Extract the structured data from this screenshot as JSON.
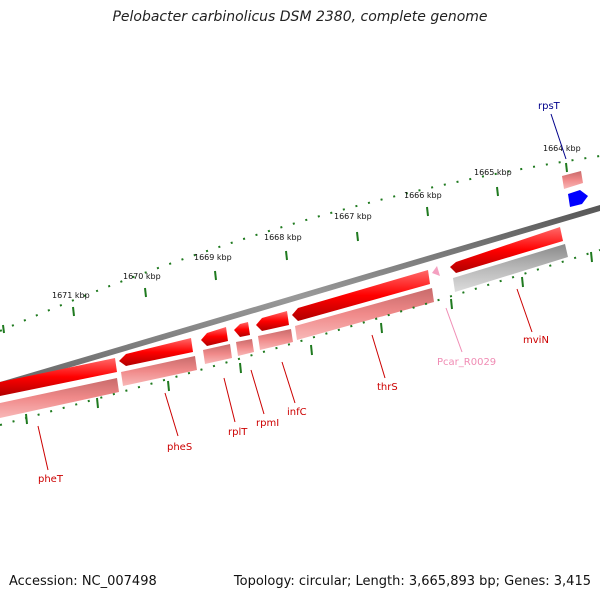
{
  "title": "Pelobacter carbinolicus DSM 2380, complete genome",
  "footer": {
    "accession": "Accession: NC_007498",
    "summary": "Topology: circular; Length: 3,665,893 bp; Genes: 3,415"
  },
  "colors": {
    "gene_forward": "#ff0000",
    "gene_reverse_pink": "#f08080",
    "gene_gray": "#b0b0b0",
    "gene_blue": "#0000ff",
    "rna": "#f4a0c0",
    "backbone": "#7a7a7a",
    "tick": "#1f7a1f",
    "label_red": "#cc0000",
    "label_blue": "#00008b",
    "label_pink": "#f08cb4"
  },
  "scale_labels": [
    "1671 kbp",
    "1670 kbp",
    "1669 kbp",
    "1668 kbp",
    "1667 kbp",
    "1666 kbp",
    "1665 kbp",
    "1664 kbp"
  ],
  "genes": [
    {
      "name": "pheT",
      "color": "label_red"
    },
    {
      "name": "pheS",
      "color": "label_red"
    },
    {
      "name": "rplT",
      "color": "label_red"
    },
    {
      "name": "rpmI",
      "color": "label_red"
    },
    {
      "name": "infC",
      "color": "label_red"
    },
    {
      "name": "thrS",
      "color": "label_red"
    },
    {
      "name": "Pcar_R0029",
      "color": "label_pink"
    },
    {
      "name": "mviN",
      "color": "label_red"
    },
    {
      "name": "rpsT",
      "color": "label_blue"
    }
  ]
}
